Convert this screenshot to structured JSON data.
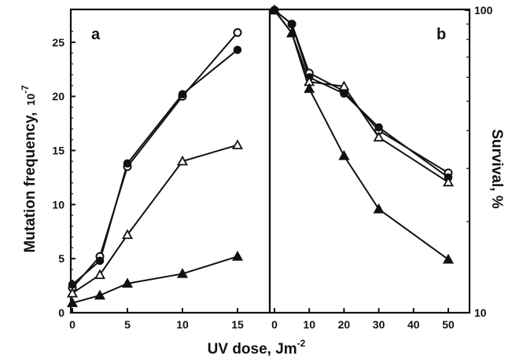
{
  "chart_data": [
    {
      "panel": "a",
      "type": "line",
      "xlabel": "UV dose, Jm",
      "xlabel_superscript": "-2",
      "ylabel": "Mutation frequency,",
      "ylabel_unit": "10",
      "ylabel_unit_superscript": "-7",
      "xlim": [
        0,
        15
      ],
      "ylim": [
        0,
        27
      ],
      "x_ticks": [
        "0",
        "5",
        "10",
        "15"
      ],
      "y_ticks": [
        "0",
        "5",
        "10",
        "15",
        "20",
        "25"
      ],
      "x": [
        0,
        2.5,
        5,
        10,
        15
      ],
      "series": [
        {
          "marker": "open-circle",
          "values": [
            2.3,
            5.2,
            13.5,
            20.0,
            25.9
          ]
        },
        {
          "marker": "filled-circle",
          "values": [
            2.6,
            4.8,
            13.8,
            20.2,
            24.3
          ]
        },
        {
          "marker": "open-triangle",
          "values": [
            1.8,
            3.5,
            7.2,
            14.0,
            15.5
          ]
        },
        {
          "marker": "filled-triangle",
          "values": [
            0.9,
            1.6,
            2.7,
            3.6,
            5.2
          ]
        }
      ]
    },
    {
      "panel": "b",
      "type": "line",
      "ylabel": "Survival, %",
      "yscale": "log",
      "xlim": [
        0,
        55
      ],
      "ylim": [
        10,
        100
      ],
      "x_ticks": [
        "0",
        "10",
        "20",
        "30",
        "40",
        "50"
      ],
      "y_ticks": [
        "10",
        "100"
      ],
      "x": [
        0,
        5,
        10,
        20,
        30,
        50
      ],
      "series": [
        {
          "marker": "open-circle",
          "values": [
            100,
            90,
            62,
            54,
            40,
            29
          ]
        },
        {
          "marker": "filled-circle",
          "values": [
            100,
            90,
            60,
            53,
            41,
            28
          ]
        },
        {
          "marker": "open-triangle",
          "values": [
            100,
            84,
            58,
            56,
            38,
            27
          ]
        },
        {
          "marker": "filled-triangle",
          "values": [
            100,
            84,
            55,
            33,
            22,
            15
          ]
        }
      ]
    }
  ]
}
